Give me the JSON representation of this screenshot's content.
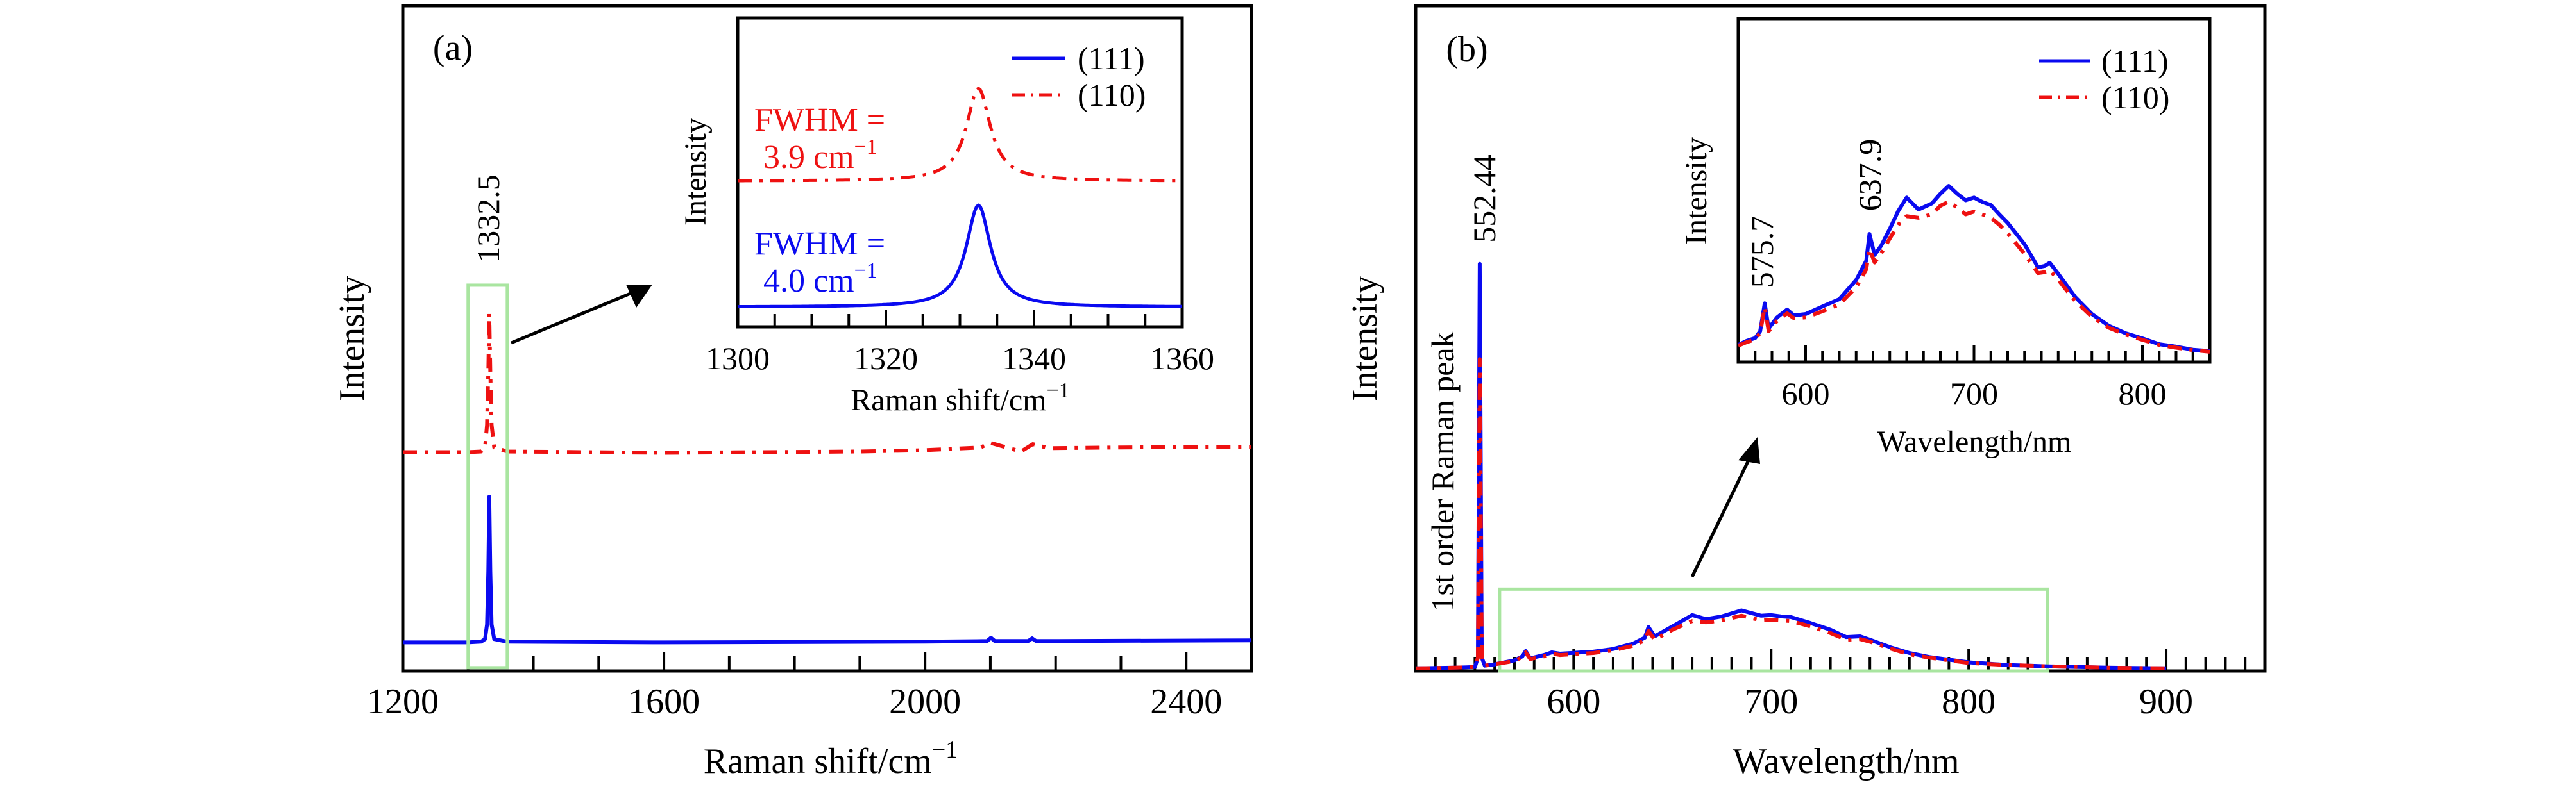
{
  "figure": {
    "colors": {
      "series_111": "#0a0af0",
      "series_110": "#ee1111",
      "zoom_box": "#a9e5a0",
      "axes": "#000000"
    }
  },
  "chart_data": [
    {
      "id": "panel-a",
      "type": "line",
      "panel_label": "(a)",
      "title": "",
      "xlabel": "Raman shift/cm",
      "xlabel_superscript": "−1",
      "ylabel": "Intensity",
      "xlim": [
        1200,
        2500
      ],
      "ylim": [
        0,
        1
      ],
      "y_units": "normalized (a.u., no ticks)",
      "x_major_ticks": [
        1200,
        1600,
        2000,
        2400
      ],
      "x_major_tick_labels": [
        "1200",
        "1600",
        "2000",
        "2400"
      ],
      "x_minor_ticks": [
        1300,
        1400,
        1500,
        1700,
        1800,
        1900,
        2100,
        2200,
        2300
      ],
      "grid": false,
      "annotations": [
        {
          "text": "1332.5",
          "x": 1332.5,
          "rotated": true
        }
      ],
      "zoom_box": {
        "x_range": [
          1300,
          1360
        ],
        "y_range": [
          0.005,
          0.58
        ]
      },
      "series": [
        {
          "name": "(111)",
          "style": "solid",
          "x": [
            1200,
            1300,
            1320,
            1326,
            1329,
            1331,
            1332.5,
            1334,
            1336,
            1340,
            1360,
            1600,
            2000,
            2095,
            2101,
            2107,
            2158,
            2164,
            2170,
            2500
          ],
          "y": [
            0.043,
            0.043,
            0.044,
            0.048,
            0.07,
            0.15,
            0.262,
            0.15,
            0.07,
            0.048,
            0.044,
            0.043,
            0.044,
            0.045,
            0.05,
            0.045,
            0.045,
            0.049,
            0.045,
            0.046
          ]
        },
        {
          "name": "(110)",
          "style": "dash-dot",
          "x": [
            1200,
            1300,
            1320,
            1326,
            1329,
            1331,
            1332.5,
            1334,
            1336,
            1340,
            1360,
            1600,
            1900,
            2000,
            2085,
            2100,
            2147,
            2165,
            2190,
            2300,
            2500
          ],
          "y": [
            0.329,
            0.329,
            0.33,
            0.336,
            0.37,
            0.45,
            0.537,
            0.45,
            0.37,
            0.336,
            0.33,
            0.328,
            0.33,
            0.332,
            0.336,
            0.343,
            0.33,
            0.341,
            0.335,
            0.336,
            0.337
          ]
        }
      ],
      "inset": {
        "type": "line",
        "xlabel": "Raman shift/cm",
        "xlabel_superscript": "−1",
        "ylabel": "Intensity",
        "xlim": [
          1300,
          1360
        ],
        "ylim": [
          0,
          1
        ],
        "x_major_ticks": [
          1300,
          1320,
          1340,
          1360
        ],
        "x_major_tick_labels": [
          "1300",
          "1320",
          "1340",
          "1360"
        ],
        "x_minor_ticks": [
          1305,
          1310,
          1315,
          1325,
          1330,
          1335,
          1345,
          1350,
          1355
        ],
        "legend": {
          "placement": "top-right",
          "entries": [
            {
              "label": "(111)",
              "style": "solid",
              "color_key": "series_111"
            },
            {
              "label": "(110)",
              "style": "dash-dot",
              "color_key": "series_110"
            }
          ]
        },
        "annotations": [
          {
            "series": "(110)",
            "line1": "FWHM =",
            "line2": "3.9 cm",
            "superscript": "−1"
          },
          {
            "series": "(111)",
            "line1": "FWHM =",
            "line2": "4.0 cm",
            "superscript": "−1"
          }
        ],
        "series": [
          {
            "name": "(111)",
            "style": "solid",
            "fwhm_cm-1": 4.0,
            "peak_center": 1332.5,
            "baseline": 0.064,
            "peak_height": 0.33
          },
          {
            "name": "(110)",
            "style": "dash-dot",
            "fwhm_cm-1": 3.9,
            "peak_center": 1332.5,
            "baseline": 0.472,
            "peak_height": 0.3
          }
        ]
      }
    },
    {
      "id": "panel-b",
      "type": "line",
      "panel_label": "(b)",
      "title": "",
      "xlabel": "Wavelength/nm",
      "ylabel": "Intensity",
      "xlim": [
        520,
        950
      ],
      "ylim": [
        0,
        1
      ],
      "y_units": "normalized (a.u., no ticks)",
      "x_major_ticks": [
        600,
        700,
        800,
        900
      ],
      "x_major_tick_labels": [
        "600",
        "700",
        "800",
        "900"
      ],
      "x_minor_step": 10,
      "grid": false,
      "annotations": [
        {
          "text": "552.44",
          "x": 552.44,
          "rotated": true
        },
        {
          "text": "1st order Raman peak",
          "rotated": true
        }
      ],
      "zoom_box": {
        "x_range": [
          562.5,
          840
        ],
        "y_range": [
          0.0,
          0.123
        ]
      },
      "series": [
        {
          "name": "(111)",
          "style": "solid",
          "x": [
            520,
            540,
            550,
            551.5,
            552.44,
            553.5,
            555,
            560,
            570,
            574,
            575.7,
            578,
            585,
            589,
            593,
            610,
            620,
            630,
            636,
            637.9,
            641,
            650,
            660,
            667,
            675,
            685,
            695,
            700,
            705,
            710,
            720,
            730,
            738,
            745,
            750,
            760,
            770,
            780,
            790,
            800,
            820,
            840,
            870,
            900
          ],
          "y": [
            0.004,
            0.005,
            0.006,
            0.02,
            0.612,
            0.02,
            0.008,
            0.01,
            0.016,
            0.022,
            0.03,
            0.019,
            0.024,
            0.028,
            0.026,
            0.029,
            0.033,
            0.041,
            0.05,
            0.066,
            0.052,
            0.067,
            0.084,
            0.078,
            0.082,
            0.091,
            0.083,
            0.084,
            0.082,
            0.081,
            0.072,
            0.062,
            0.051,
            0.052,
            0.047,
            0.036,
            0.027,
            0.021,
            0.017,
            0.013,
            0.009,
            0.007,
            0.005,
            0.004
          ]
        },
        {
          "name": "(110)",
          "style": "dash-dot",
          "x": [
            520,
            540,
            550,
            551.5,
            552.44,
            553.5,
            555,
            560,
            570,
            574,
            575.7,
            578,
            585,
            589,
            593,
            610,
            620,
            630,
            636,
            637.9,
            641,
            650,
            660,
            667,
            675,
            685,
            695,
            700,
            705,
            710,
            720,
            730,
            738,
            745,
            750,
            760,
            770,
            780,
            790,
            800,
            820,
            840,
            870,
            900
          ],
          "y": [
            0.004,
            0.005,
            0.006,
            0.02,
            0.469,
            0.02,
            0.008,
            0.01,
            0.015,
            0.021,
            0.028,
            0.018,
            0.022,
            0.026,
            0.024,
            0.027,
            0.031,
            0.038,
            0.046,
            0.06,
            0.047,
            0.062,
            0.075,
            0.073,
            0.076,
            0.083,
            0.076,
            0.077,
            0.076,
            0.075,
            0.067,
            0.057,
            0.047,
            0.048,
            0.044,
            0.034,
            0.025,
            0.02,
            0.016,
            0.012,
            0.009,
            0.007,
            0.005,
            0.004
          ]
        }
      ],
      "inset": {
        "type": "line",
        "xlabel": "Wavelength/nm",
        "ylabel": "Intensity",
        "xlim": [
          560,
          840
        ],
        "ylim": [
          0,
          1
        ],
        "x_major_ticks": [
          600,
          700,
          800
        ],
        "x_major_tick_labels": [
          "600",
          "700",
          "800"
        ],
        "x_minor_step": 10,
        "legend": {
          "placement": "top-right",
          "entries": [
            {
              "label": "(111)",
              "style": "solid",
              "color_key": "series_111"
            },
            {
              "label": "(110)",
              "style": "dash-dot",
              "color_key": "series_110"
            }
          ]
        },
        "annotations": [
          {
            "text": "575.7",
            "x": 575.7,
            "rotated": true
          },
          {
            "text": "637.9",
            "x": 637.9,
            "rotated": true
          }
        ],
        "series": [
          {
            "name": "(111)",
            "style": "solid",
            "x": [
              560,
              565,
              570,
              573,
              575.7,
              578,
              583,
              589,
              593,
              600,
              610,
              620,
              630,
              636,
              637.9,
              641,
              645,
              650,
              655,
              660,
              667,
              675,
              680,
              685,
              690,
              695,
              700,
              705,
              710,
              715,
              720,
              730,
              738,
              742,
              745,
              750,
              760,
              770,
              780,
              790,
              800,
              810,
              820,
              830,
              840
            ],
            "y": [
              0.05,
              0.062,
              0.07,
              0.09,
              0.171,
              0.098,
              0.13,
              0.153,
              0.136,
              0.14,
              0.162,
              0.183,
              0.239,
              0.295,
              0.373,
              0.312,
              0.34,
              0.388,
              0.44,
              0.479,
              0.444,
              0.462,
              0.49,
              0.513,
              0.49,
              0.471,
              0.479,
              0.466,
              0.457,
              0.43,
              0.405,
              0.343,
              0.276,
              0.28,
              0.289,
              0.257,
              0.19,
              0.14,
              0.106,
              0.084,
              0.069,
              0.052,
              0.045,
              0.036,
              0.032
            ]
          },
          {
            "name": "(110)",
            "style": "dash-dot",
            "x": [
              560,
              565,
              570,
              573,
              575.7,
              578,
              583,
              589,
              593,
              600,
              610,
              620,
              630,
              636,
              637.9,
              641,
              645,
              650,
              655,
              660,
              667,
              675,
              680,
              685,
              690,
              695,
              700,
              705,
              710,
              715,
              720,
              730,
              738,
              742,
              745,
              750,
              760,
              770,
              780,
              790,
              800,
              810,
              820,
              830,
              840
            ],
            "y": [
              0.048,
              0.058,
              0.066,
              0.085,
              0.16,
              0.09,
              0.12,
              0.142,
              0.128,
              0.13,
              0.148,
              0.168,
              0.218,
              0.27,
              0.33,
              0.29,
              0.318,
              0.36,
              0.4,
              0.425,
              0.42,
              0.43,
              0.455,
              0.467,
              0.45,
              0.43,
              0.438,
              0.43,
              0.42,
              0.4,
              0.375,
              0.315,
              0.259,
              0.262,
              0.268,
              0.24,
              0.178,
              0.132,
              0.1,
              0.08,
              0.065,
              0.05,
              0.042,
              0.035,
              0.03
            ]
          }
        ]
      }
    }
  ]
}
